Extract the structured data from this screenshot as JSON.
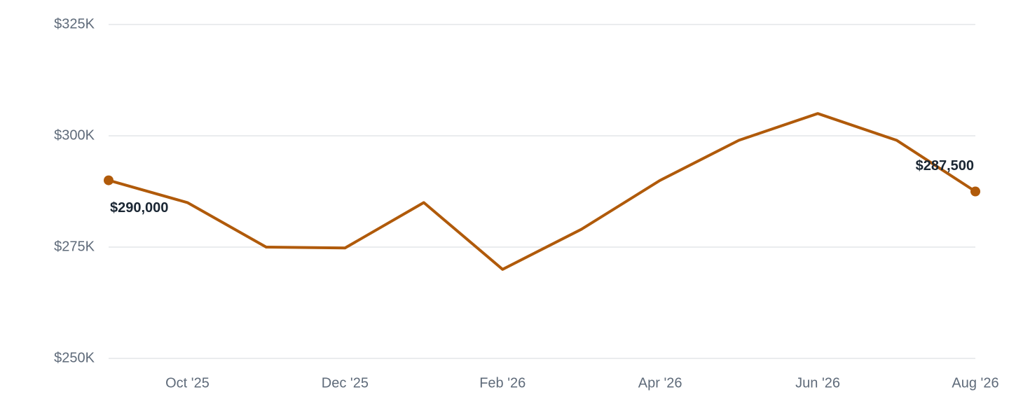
{
  "chart_data": {
    "type": "line",
    "categories": [
      null,
      "Oct '25",
      null,
      "Dec '25",
      null,
      "Feb '26",
      null,
      "Apr '26",
      null,
      "Jun '26",
      null,
      "Aug '26"
    ],
    "series": [
      {
        "color": "#b05a0a",
        "values": [
          290000,
          285000,
          275000,
          274800,
          285000,
          270000,
          279000,
          290000,
          299000,
          305000,
          299000,
          287500
        ],
        "value_labels": [
          "$290,000",
          null,
          null,
          null,
          null,
          null,
          null,
          null,
          null,
          null,
          null,
          "$287,500"
        ]
      }
    ],
    "ylim": [
      250000,
      325000
    ],
    "yticks": [
      {
        "value": 250000,
        "label": "$250K"
      },
      {
        "value": 275000,
        "label": "$275K"
      },
      {
        "value": 300000,
        "label": "$300K"
      },
      {
        "value": 325000,
        "label": "$325K"
      }
    ],
    "grid": true
  }
}
